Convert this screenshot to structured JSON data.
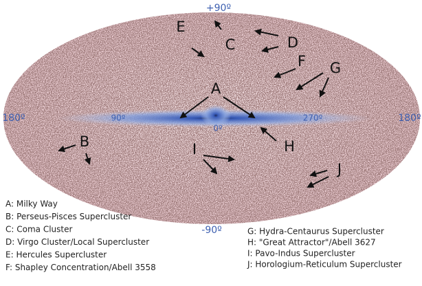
{
  "axis_labels": {
    "north": "+90º",
    "south": "-90º",
    "left": "180º",
    "l90": "90º",
    "center": "0º",
    "l270": "270º",
    "right": "180º"
  },
  "points": [
    {
      "label": "A",
      "name": "A: Milky Way"
    },
    {
      "label": "B",
      "name": "B: Perseus-Pisces Supercluster"
    },
    {
      "label": "C",
      "name": "C: Coma Cluster"
    },
    {
      "label": "D",
      "name": "D: Virgo Cluster/Local Supercluster"
    },
    {
      "label": "E",
      "name": "E: Hercules Supercluster"
    },
    {
      "label": "F",
      "name": "F: Shapley Concentration/Abell 3558"
    },
    {
      "label": "G",
      "name": "G: Hydra-Centaurus Supercluster"
    },
    {
      "label": "H",
      "name": "H: \"Great Attractor\"/Abell 3627"
    },
    {
      "label": "I",
      "name": "I: Pavo-Indus Supercluster"
    },
    {
      "label": "J",
      "name": "J: Horologium-Reticulum Supercluster"
    }
  ]
}
